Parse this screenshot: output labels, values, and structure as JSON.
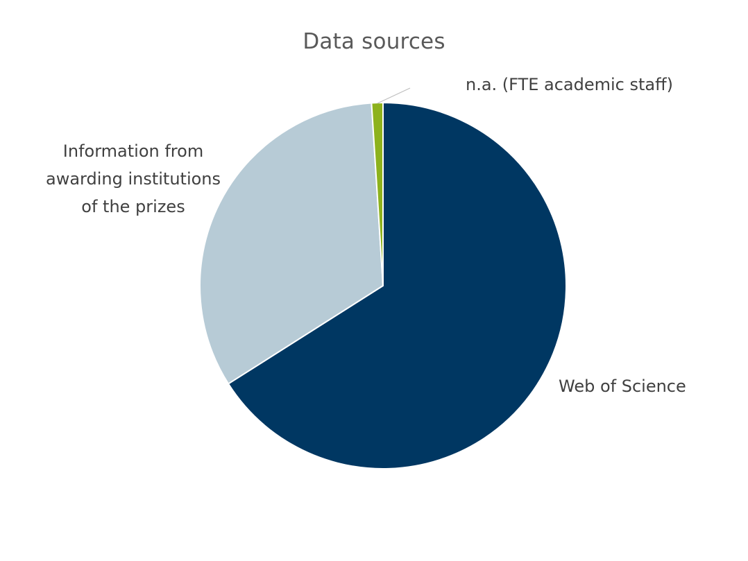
{
  "chart_data": {
    "type": "pie",
    "title": "Data sources",
    "slices": [
      {
        "label": "Web of Science",
        "value": 66,
        "color": "#003762"
      },
      {
        "label": "Information from\nawarding institutions\nof the prizes",
        "value": 33,
        "color": "#b7cbd6"
      },
      {
        "label": "n.a. (FTE academic staff)",
        "value": 1,
        "color": "#8db21d"
      }
    ],
    "start_angle_deg": 0,
    "direction": "clockwise",
    "slice_separator_color": "#ffffff",
    "leader_line_color": "#bfbfbf"
  }
}
